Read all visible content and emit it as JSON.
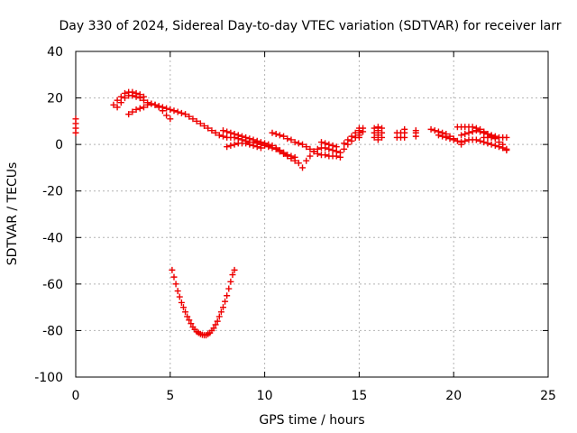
{
  "chart_data": {
    "type": "scatter",
    "title": "Day 330 of 2024, Sidereal Day-to-day VTEC variation (SDTVAR) for receiver larr",
    "xlabel": "GPS time / hours",
    "ylabel": "SDTVAR / TECUs",
    "xlim": [
      0,
      25
    ],
    "ylim": [
      -100,
      40
    ],
    "xticks": [
      "0",
      "5",
      "10",
      "15",
      "20",
      "25"
    ],
    "yticks": [
      "40",
      "20",
      "0",
      "-20",
      "-40",
      "-60",
      "-80",
      "-100"
    ],
    "grid": true,
    "marker": "plus",
    "color": "#ee0000",
    "series": [
      {
        "points": [
          [
            0.0,
            11
          ],
          [
            0.0,
            9
          ],
          [
            0.0,
            7
          ],
          [
            0.0,
            5
          ],
          [
            2.2,
            16
          ],
          [
            2.4,
            18
          ],
          [
            2.6,
            20
          ],
          [
            2.8,
            21
          ],
          [
            3.0,
            21
          ],
          [
            3.2,
            20.5
          ],
          [
            3.4,
            20
          ],
          [
            3.6,
            19
          ],
          [
            3.8,
            18
          ],
          [
            4.0,
            17.5
          ],
          [
            4.2,
            17
          ],
          [
            4.4,
            16.5
          ],
          [
            4.6,
            16
          ],
          [
            4.8,
            15.5
          ],
          [
            5.0,
            15
          ],
          [
            5.2,
            14.5
          ],
          [
            5.4,
            14
          ],
          [
            5.6,
            13.5
          ],
          [
            5.8,
            13
          ],
          [
            6.0,
            12
          ],
          [
            6.2,
            11
          ],
          [
            6.4,
            10
          ],
          [
            6.6,
            9
          ],
          [
            6.8,
            8
          ],
          [
            7.0,
            7
          ],
          [
            7.2,
            6
          ],
          [
            7.4,
            5
          ],
          [
            7.6,
            4
          ],
          [
            7.8,
            3.5
          ],
          [
            8.0,
            3
          ],
          [
            8.2,
            3
          ],
          [
            8.4,
            3
          ],
          [
            8.6,
            2.5
          ],
          [
            8.8,
            2
          ],
          [
            9.0,
            1.5
          ],
          [
            9.2,
            1
          ],
          [
            9.4,
            1
          ],
          [
            9.6,
            0.5
          ],
          [
            9.8,
            0
          ],
          [
            10.0,
            -0.5
          ],
          [
            10.2,
            -1
          ],
          [
            10.4,
            -1.5
          ],
          [
            10.6,
            -2
          ],
          [
            10.8,
            -3
          ],
          [
            11.0,
            -4
          ],
          [
            11.2,
            -5
          ],
          [
            11.4,
            -6
          ],
          [
            11.6,
            -7
          ],
          [
            11.8,
            -8
          ],
          [
            2.0,
            17
          ],
          [
            2.2,
            19
          ],
          [
            2.4,
            20.5
          ],
          [
            2.6,
            22
          ],
          [
            2.8,
            22.5
          ],
          [
            3.0,
            22.5
          ],
          [
            3.2,
            22
          ],
          [
            3.4,
            21.5
          ],
          [
            3.6,
            20.5
          ],
          [
            2.8,
            13
          ],
          [
            3.0,
            14
          ],
          [
            3.2,
            15
          ],
          [
            3.4,
            15.5
          ],
          [
            3.6,
            16
          ],
          [
            3.8,
            17
          ],
          [
            4.0,
            17.5
          ],
          [
            4.2,
            17
          ],
          [
            4.4,
            16
          ],
          [
            4.6,
            14.5
          ],
          [
            4.8,
            12.5
          ],
          [
            5.0,
            11
          ],
          [
            7.8,
            6
          ],
          [
            8.0,
            5.5
          ],
          [
            8.2,
            5
          ],
          [
            8.4,
            4.5
          ],
          [
            8.6,
            4
          ],
          [
            8.8,
            3.5
          ],
          [
            9.0,
            3
          ],
          [
            9.2,
            2.5
          ],
          [
            9.4,
            2
          ],
          [
            9.6,
            1.5
          ],
          [
            9.8,
            1
          ],
          [
            10.0,
            0.5
          ],
          [
            10.2,
            0
          ],
          [
            10.4,
            -0.5
          ],
          [
            10.6,
            -1.5
          ],
          [
            10.8,
            -2.5
          ],
          [
            11.0,
            -3.5
          ],
          [
            11.2,
            -4.5
          ],
          [
            11.4,
            -5
          ],
          [
            11.6,
            -5.5
          ],
          [
            8.0,
            -1
          ],
          [
            8.2,
            -0.5
          ],
          [
            8.4,
            0
          ],
          [
            8.6,
            0.5
          ],
          [
            8.8,
            0.5
          ],
          [
            9.0,
            0.5
          ],
          [
            9.2,
            0
          ],
          [
            9.4,
            -0.5
          ],
          [
            9.6,
            -1
          ],
          [
            9.8,
            -1.5
          ],
          [
            10.4,
            5
          ],
          [
            10.6,
            4.5
          ],
          [
            10.8,
            4
          ],
          [
            11.0,
            3.5
          ],
          [
            11.2,
            2.5
          ],
          [
            11.4,
            2
          ],
          [
            11.6,
            1
          ],
          [
            11.8,
            0.5
          ],
          [
            12.0,
            0
          ],
          [
            12.2,
            -1
          ],
          [
            12.4,
            -2
          ],
          [
            12.6,
            -3
          ],
          [
            12.8,
            -4
          ],
          [
            13.0,
            -4.5
          ],
          [
            13.2,
            -4.5
          ],
          [
            13.4,
            -5
          ],
          [
            13.6,
            -5
          ],
          [
            13.8,
            -5
          ],
          [
            14.0,
            -5.5
          ],
          [
            12.0,
            -10
          ],
          [
            12.2,
            -7
          ],
          [
            12.4,
            -5
          ],
          [
            12.6,
            -3
          ],
          [
            12.8,
            -2
          ],
          [
            13.0,
            -1.5
          ],
          [
            13.2,
            -1.5
          ],
          [
            13.4,
            -2
          ],
          [
            13.6,
            -2.5
          ],
          [
            13.8,
            -3
          ],
          [
            14.0,
            -3.5
          ],
          [
            14.2,
            -2
          ],
          [
            14.4,
            0
          ],
          [
            14.6,
            1.5
          ],
          [
            14.8,
            3
          ],
          [
            15.0,
            4
          ],
          [
            13.0,
            1
          ],
          [
            13.2,
            0.5
          ],
          [
            13.4,
            0
          ],
          [
            13.6,
            -0.5
          ],
          [
            13.8,
            -1
          ],
          [
            14.2,
            0.5
          ],
          [
            14.4,
            2
          ],
          [
            14.6,
            3.5
          ],
          [
            14.8,
            5
          ],
          [
            15.0,
            6
          ],
          [
            15.2,
            7
          ],
          [
            14.8,
            3
          ],
          [
            15.0,
            4
          ],
          [
            15.2,
            5.5
          ],
          [
            15.0,
            3
          ],
          [
            15.0,
            5
          ],
          [
            15.0,
            7
          ],
          [
            15.8,
            7
          ],
          [
            15.8,
            5
          ],
          [
            15.8,
            3
          ],
          [
            16.0,
            2
          ],
          [
            16.0,
            4
          ],
          [
            16.0,
            6
          ],
          [
            16.0,
            7.5
          ],
          [
            16.2,
            7
          ],
          [
            16.2,
            5
          ],
          [
            16.2,
            3
          ],
          [
            17.0,
            3
          ],
          [
            17.0,
            5
          ],
          [
            17.2,
            5
          ],
          [
            17.2,
            3
          ],
          [
            17.4,
            3
          ],
          [
            17.4,
            5
          ],
          [
            17.4,
            6.5
          ],
          [
            18.0,
            3.5
          ],
          [
            18.0,
            5
          ],
          [
            18.0,
            6
          ],
          [
            18.8,
            6.5
          ],
          [
            19.0,
            6
          ],
          [
            19.2,
            5.5
          ],
          [
            19.4,
            5
          ],
          [
            19.6,
            4.5
          ],
          [
            19.8,
            3.5
          ],
          [
            20.0,
            2.5
          ],
          [
            20.2,
            1.5
          ],
          [
            20.4,
            0
          ],
          [
            19.2,
            4
          ],
          [
            19.4,
            3.5
          ],
          [
            19.6,
            3
          ],
          [
            19.8,
            2.5
          ],
          [
            20.0,
            2
          ],
          [
            20.2,
            7.5
          ],
          [
            20.4,
            7.5
          ],
          [
            20.6,
            7.5
          ],
          [
            20.8,
            7.5
          ],
          [
            21.0,
            7.5
          ],
          [
            21.2,
            7
          ],
          [
            21.4,
            6.5
          ],
          [
            21.6,
            5.5
          ],
          [
            21.8,
            4.5
          ],
          [
            22.0,
            3.5
          ],
          [
            22.2,
            2.5
          ],
          [
            22.4,
            1
          ],
          [
            22.6,
            0
          ],
          [
            22.8,
            -2
          ],
          [
            20.4,
            4
          ],
          [
            20.6,
            4.5
          ],
          [
            20.8,
            5
          ],
          [
            21.0,
            5.5
          ],
          [
            21.2,
            6
          ],
          [
            21.4,
            5.5
          ],
          [
            21.6,
            5
          ],
          [
            21.8,
            4.5
          ],
          [
            22.0,
            4
          ],
          [
            22.2,
            3.5
          ],
          [
            20.4,
            1
          ],
          [
            20.6,
            1.5
          ],
          [
            20.8,
            2
          ],
          [
            21.0,
            2
          ],
          [
            21.2,
            2
          ],
          [
            21.4,
            1.5
          ],
          [
            21.6,
            1
          ],
          [
            21.8,
            0.5
          ],
          [
            22.0,
            0
          ],
          [
            22.2,
            -0.5
          ],
          [
            22.4,
            -1
          ],
          [
            22.6,
            -1.5
          ],
          [
            22.8,
            -2.5
          ],
          [
            21.6,
            3
          ],
          [
            21.8,
            3
          ],
          [
            22.0,
            3
          ],
          [
            22.2,
            3
          ],
          [
            22.4,
            3
          ],
          [
            22.6,
            3
          ],
          [
            22.8,
            3
          ],
          [
            5.1,
            -54
          ],
          [
            5.2,
            -57
          ],
          [
            5.3,
            -60
          ],
          [
            5.4,
            -63
          ],
          [
            5.5,
            -65.5
          ],
          [
            5.6,
            -68
          ],
          [
            5.7,
            -70
          ],
          [
            5.8,
            -72
          ],
          [
            5.9,
            -74
          ],
          [
            6.0,
            -75.5
          ],
          [
            6.1,
            -77
          ],
          [
            6.2,
            -78.5
          ],
          [
            6.3,
            -79.5
          ],
          [
            6.4,
            -80.5
          ],
          [
            6.5,
            -81
          ],
          [
            6.6,
            -81.5
          ],
          [
            6.7,
            -81.8
          ],
          [
            6.8,
            -82
          ],
          [
            6.9,
            -82
          ],
          [
            7.0,
            -81.5
          ],
          [
            7.1,
            -81
          ],
          [
            7.2,
            -80
          ],
          [
            7.3,
            -79
          ],
          [
            7.4,
            -77.5
          ],
          [
            7.5,
            -76
          ],
          [
            7.6,
            -74
          ],
          [
            7.7,
            -72
          ],
          [
            7.8,
            -70
          ],
          [
            7.9,
            -67.5
          ],
          [
            8.0,
            -65
          ],
          [
            8.1,
            -62
          ],
          [
            8.2,
            -59
          ],
          [
            8.3,
            -56
          ],
          [
            8.4,
            -54
          ]
        ]
      }
    ]
  }
}
